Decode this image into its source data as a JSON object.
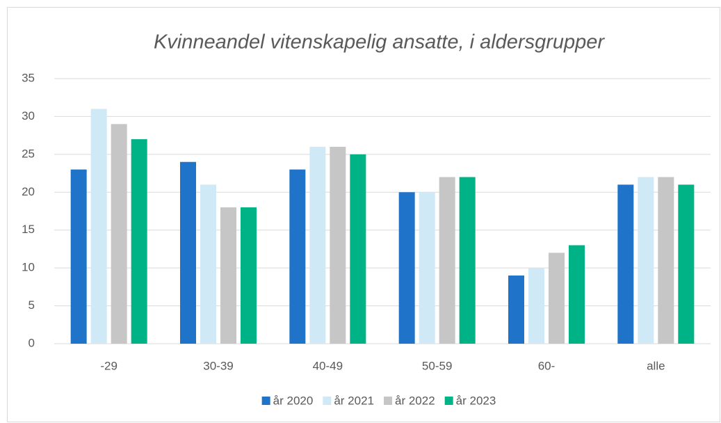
{
  "chart_data": {
    "type": "bar",
    "title": "Kvinneandel vitenskapelig ansatte, i aldersgrupper",
    "categories": [
      "-29",
      "30-39",
      "40-49",
      "50-59",
      "60-",
      "alle"
    ],
    "series": [
      {
        "name": "år 2020",
        "color": "#1f73c8",
        "values": [
          23,
          24,
          23,
          20,
          9,
          21
        ]
      },
      {
        "name": "år 2021",
        "color": "#cfe9f6",
        "values": [
          31,
          21,
          26,
          20,
          10,
          22
        ]
      },
      {
        "name": "år 2022",
        "color": "#c6c6c6",
        "values": [
          29,
          18,
          26,
          22,
          12,
          22
        ]
      },
      {
        "name": "år 2023",
        "color": "#00b386",
        "values": [
          27,
          18,
          25,
          22,
          13,
          21
        ]
      }
    ],
    "ylim": [
      0,
      35
    ],
    "yticks": [
      0,
      5,
      10,
      15,
      20,
      25,
      30,
      35
    ],
    "grid": true,
    "legend": "bottom"
  }
}
